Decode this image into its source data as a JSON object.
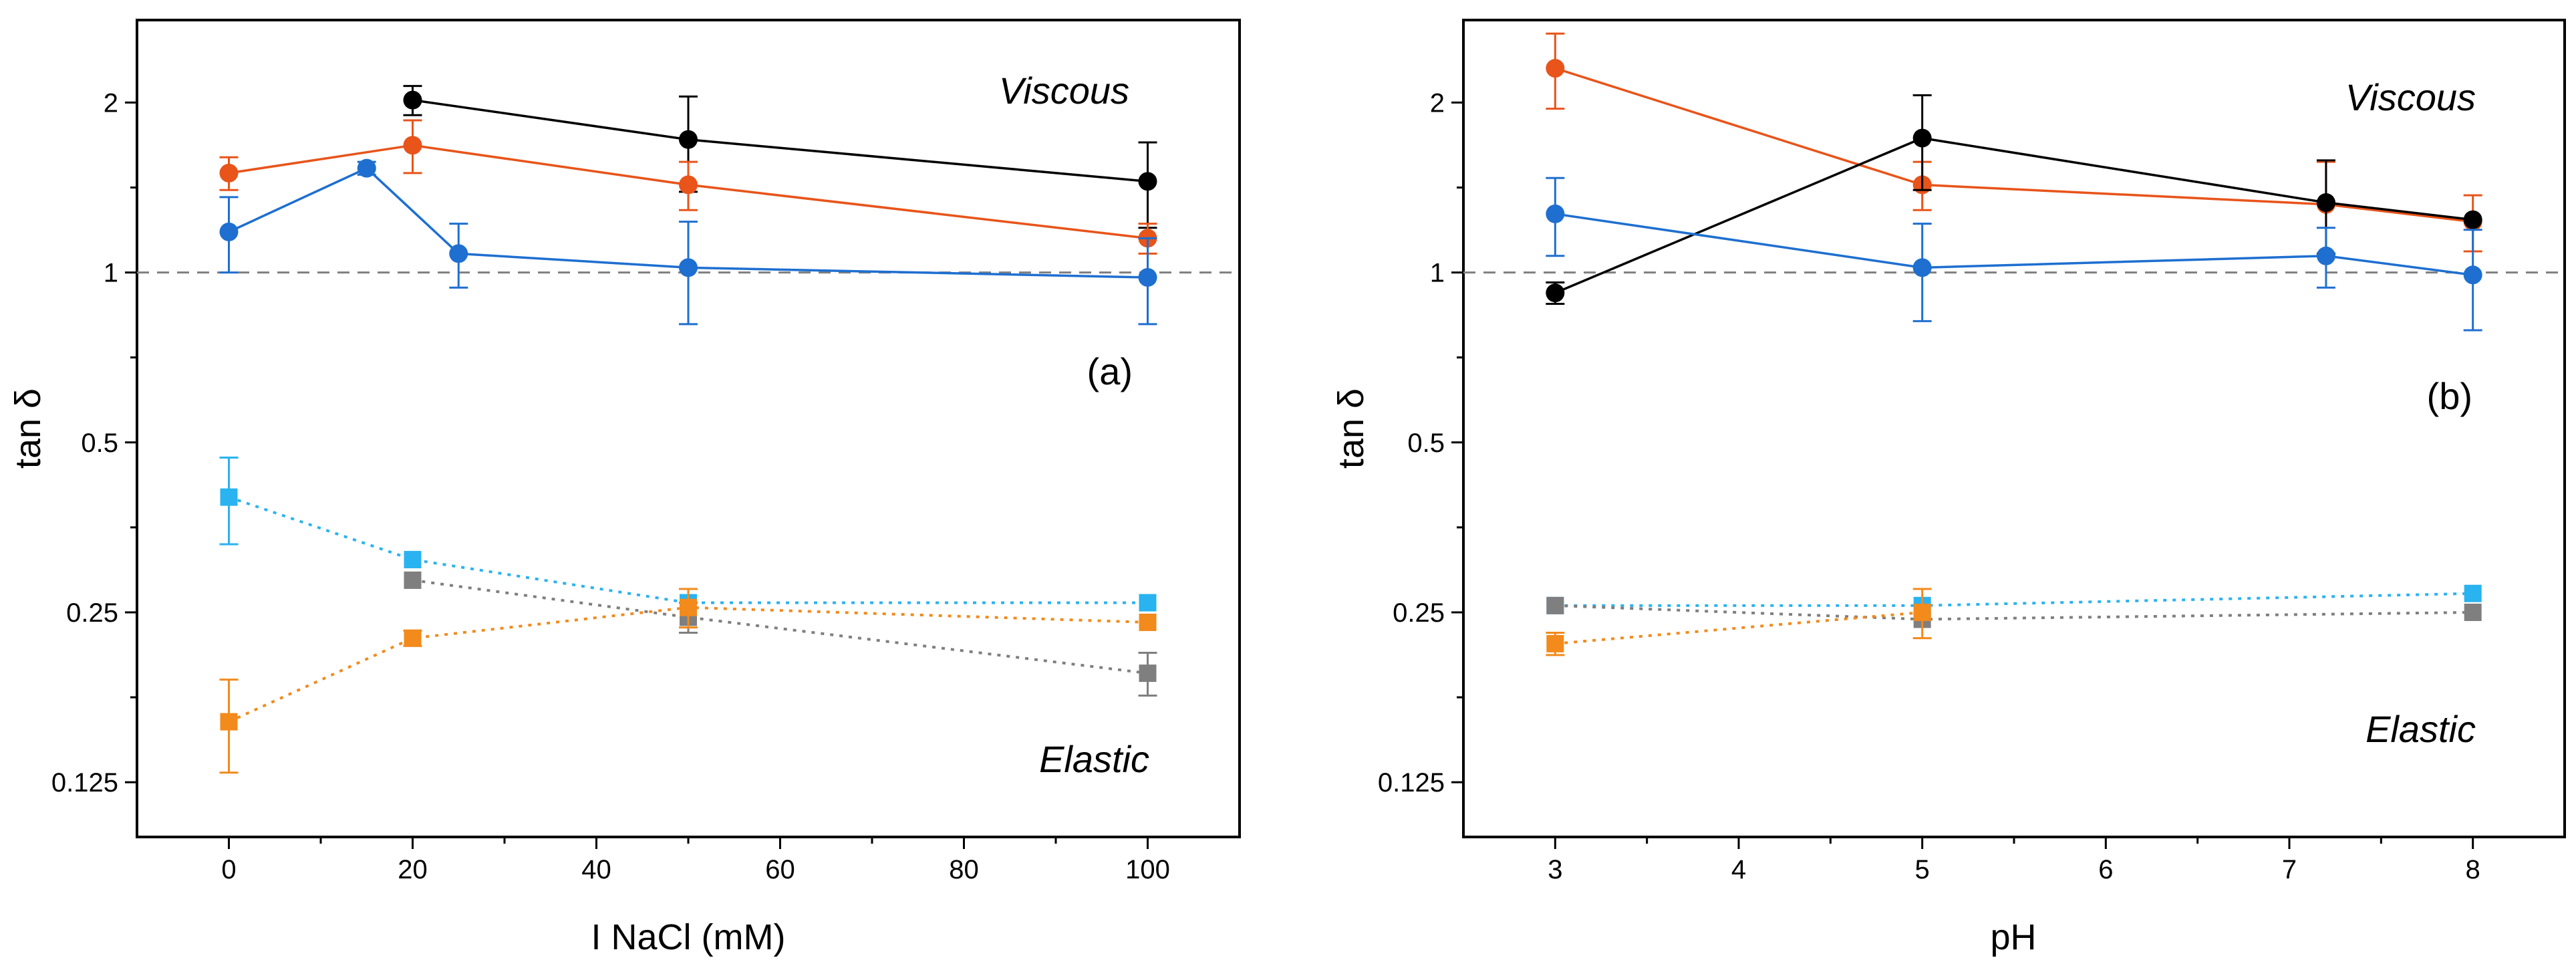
{
  "chart_data": [
    {
      "type": "line",
      "panel_label": "(a)",
      "xlabel": "I NaCl (mM)",
      "ylabel": "tan δ",
      "yscale": "log2",
      "xlim": [
        -10,
        110
      ],
      "ylim": [
        0.1,
        2.8
      ],
      "x_ticks": [
        0,
        20,
        40,
        60,
        80,
        100
      ],
      "x_tick_labels": [
        "0",
        "20",
        "40",
        "60",
        "80",
        "100"
      ],
      "y_ticks": [
        0.125,
        0.25,
        0.5,
        1,
        2
      ],
      "y_tick_labels": [
        "0.125",
        "0.25",
        "0.5",
        "1",
        "2"
      ],
      "reference_line": 1,
      "annotations": {
        "top": "Viscous",
        "bottom": "Elastic"
      },
      "series": [
        {
          "name": "black-viscous",
          "group": "viscous",
          "color": "#000000",
          "marker": "circle",
          "dash": false,
          "x": [
            20,
            50,
            100
          ],
          "y": [
            2.02,
            1.72,
            1.45
          ],
          "err": [
            0.12,
            0.33,
            0.25
          ]
        },
        {
          "name": "orange-viscous",
          "group": "viscous",
          "color": "#E8541A",
          "marker": "circle",
          "dash": false,
          "x": [
            0,
            20,
            50,
            100
          ],
          "y": [
            1.5,
            1.68,
            1.43,
            1.15
          ],
          "err": [
            0.1,
            0.18,
            0.14,
            0.07
          ]
        },
        {
          "name": "blue-viscous",
          "group": "viscous",
          "color": "#1E6FD0",
          "marker": "circle",
          "dash": false,
          "x": [
            0,
            15,
            25,
            50,
            100
          ],
          "y": [
            1.18,
            1.53,
            1.08,
            1.02,
            0.98
          ],
          "err": [
            0.18,
            0.04,
            0.14,
            0.21,
            0.17
          ]
        },
        {
          "name": "lightblue-elastic",
          "group": "elastic",
          "color": "#29B3F0",
          "marker": "square",
          "dash": true,
          "x": [
            0,
            20,
            50,
            100
          ],
          "y": [
            0.4,
            0.31,
            0.26,
            0.26
          ],
          "err": [
            0.07,
            0.0,
            0.0,
            0.0
          ]
        },
        {
          "name": "gray-elastic",
          "group": "elastic",
          "color": "#7F7F7F",
          "marker": "square",
          "dash": true,
          "x": [
            20,
            50,
            100
          ],
          "y": [
            0.285,
            0.245,
            0.195
          ],
          "err": [
            0.0,
            0.015,
            0.017
          ]
        },
        {
          "name": "orange-elastic",
          "group": "elastic",
          "color": "#F28A1C",
          "marker": "square",
          "dash": true,
          "x": [
            0,
            20,
            50,
            100
          ],
          "y": [
            0.16,
            0.225,
            0.255,
            0.24
          ],
          "err": [
            0.03,
            0.007,
            0.02,
            0.0
          ]
        }
      ]
    },
    {
      "type": "line",
      "panel_label": "(b)",
      "xlabel": "pH",
      "ylabel": "tan δ",
      "yscale": "log2",
      "xlim": [
        2.5,
        8.5
      ],
      "ylim": [
        0.1,
        2.8
      ],
      "x_ticks": [
        3,
        4,
        5,
        6,
        7,
        8
      ],
      "x_tick_labels": [
        "3",
        "4",
        "5",
        "6",
        "7",
        "8"
      ],
      "y_ticks": [
        0.125,
        0.25,
        0.5,
        1,
        2
      ],
      "y_tick_labels": [
        "0.125",
        "0.25",
        "0.5",
        "1",
        "2"
      ],
      "reference_line": 1,
      "annotations": {
        "top": "Viscous",
        "bottom": "Elastic"
      },
      "series": [
        {
          "name": "orange-viscous",
          "group": "viscous",
          "color": "#E8541A",
          "marker": "circle",
          "dash": false,
          "x": [
            3,
            5,
            7.2,
            8
          ],
          "y": [
            2.3,
            1.43,
            1.32,
            1.23
          ],
          "err": [
            0.35,
            0.14,
            0.25,
            0.14
          ]
        },
        {
          "name": "black-viscous",
          "group": "viscous",
          "color": "#000000",
          "marker": "circle",
          "dash": false,
          "x": [
            3,
            5,
            7.2,
            8
          ],
          "y": [
            0.92,
            1.73,
            1.33,
            1.24
          ],
          "err": [
            0.04,
            0.33,
            0.25,
            0.0
          ]
        },
        {
          "name": "blue-viscous",
          "group": "viscous",
          "color": "#1E6FD0",
          "marker": "circle",
          "dash": false,
          "x": [
            3,
            5,
            7.2,
            8
          ],
          "y": [
            1.27,
            1.02,
            1.07,
            0.99
          ],
          "err": [
            0.2,
            0.2,
            0.13,
            0.2
          ]
        },
        {
          "name": "lightblue-elastic",
          "group": "elastic",
          "color": "#29B3F0",
          "marker": "square",
          "dash": true,
          "x": [
            3,
            5,
            8
          ],
          "y": [
            0.257,
            0.257,
            0.27
          ],
          "err": [
            0.0,
            0.0,
            0.0
          ]
        },
        {
          "name": "gray-elastic",
          "group": "elastic",
          "color": "#7F7F7F",
          "marker": "square",
          "dash": true,
          "x": [
            3,
            5,
            8
          ],
          "y": [
            0.257,
            0.243,
            0.25
          ],
          "err": [
            0.0,
            0.0,
            0.0
          ]
        },
        {
          "name": "orange-elastic",
          "group": "elastic",
          "color": "#F28A1C",
          "marker": "square",
          "dash": true,
          "x": [
            3,
            5
          ],
          "y": [
            0.22,
            0.25
          ],
          "err": [
            0.01,
            0.025
          ]
        }
      ]
    }
  ]
}
